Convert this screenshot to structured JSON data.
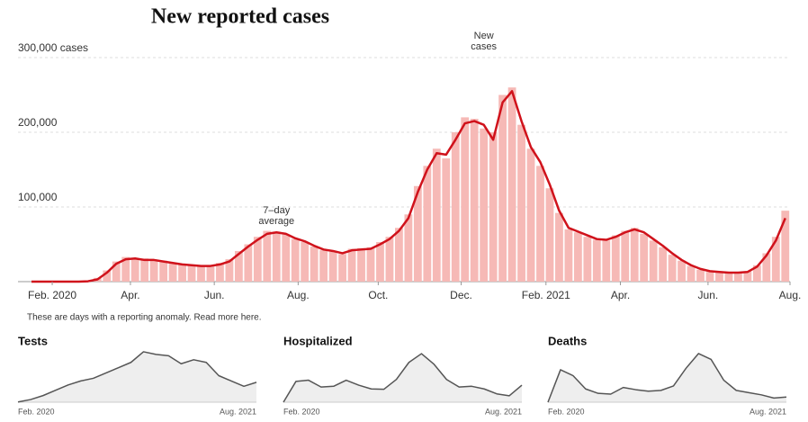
{
  "chart_data": [
    {
      "type": "bar_line",
      "title": "New reported cases",
      "annotations": [
        {
          "lines": [
            "7–day",
            "average"
          ],
          "x": 26,
          "y": 66000
        },
        {
          "lines": [
            "New",
            "cases"
          ],
          "x": 48,
          "y": 300000
        }
      ],
      "note": "These are days with a reporting anomaly. Read more here.",
      "x": [
        0,
        1,
        2,
        3,
        4,
        5,
        6,
        7,
        8,
        9,
        10,
        11,
        12,
        13,
        14,
        15,
        16,
        17,
        18,
        19,
        20,
        21,
        22,
        23,
        24,
        25,
        26,
        27,
        28,
        29,
        30,
        31,
        32,
        33,
        34,
        35,
        36,
        37,
        38,
        39,
        40,
        41,
        42,
        43,
        44,
        45,
        46,
        47,
        48,
        49,
        50,
        51,
        52,
        53,
        54,
        55,
        56,
        57,
        58,
        59,
        60,
        61,
        62,
        63,
        64,
        65,
        66,
        67,
        68,
        69,
        70,
        71,
        72,
        73,
        74,
        75,
        76,
        77,
        78,
        79,
        80
      ],
      "series": [
        {
          "type": "bar",
          "color": "#f6b9b6",
          "values": [
            0,
            0,
            0,
            0,
            0,
            0,
            800,
            5000,
            15000,
            27000,
            33000,
            30000,
            31000,
            28000,
            28000,
            25000,
            24000,
            22000,
            22000,
            22000,
            25000,
            30000,
            41000,
            50000,
            60000,
            68000,
            67000,
            63000,
            57000,
            53000,
            47000,
            42000,
            40000,
            37000,
            44000,
            45000,
            46000,
            53000,
            60000,
            72000,
            90000,
            128000,
            155000,
            178000,
            165000,
            200000,
            220000,
            218000,
            205000,
            200000,
            250000,
            260000,
            210000,
            178000,
            155000,
            125000,
            92000,
            70000,
            66000,
            60000,
            56000,
            55000,
            62000,
            68000,
            72000,
            64000,
            55000,
            46000,
            36000,
            28000,
            21000,
            16000,
            13000,
            13000,
            11000,
            12000,
            14000,
            22000,
            38000,
            60000,
            95000
          ]
        },
        {
          "type": "line",
          "color": "#d0121b",
          "values": [
            0,
            0,
            0,
            0,
            0,
            0,
            500,
            3000,
            12000,
            24000,
            30000,
            31000,
            29000,
            29000,
            27000,
            25000,
            23000,
            22000,
            21000,
            21000,
            23000,
            27000,
            37000,
            47000,
            56000,
            64000,
            66000,
            64000,
            58000,
            54000,
            48000,
            43000,
            41000,
            38000,
            42000,
            43000,
            44000,
            50000,
            57000,
            68000,
            85000,
            120000,
            150000,
            172000,
            170000,
            190000,
            212000,
            215000,
            210000,
            190000,
            240000,
            255000,
            215000,
            180000,
            160000,
            130000,
            95000,
            72000,
            67000,
            62000,
            57000,
            56000,
            60000,
            66000,
            70000,
            66000,
            57000,
            48000,
            38000,
            29000,
            22000,
            17000,
            14000,
            13000,
            12000,
            12000,
            13000,
            20000,
            35000,
            55000,
            85000
          ]
        }
      ],
      "xlim": [
        0,
        80.5
      ],
      "xticks": [
        {
          "value": 2.2,
          "label": "Feb. 2020"
        },
        {
          "value": 10.5,
          "label": "Apr."
        },
        {
          "value": 19.4,
          "label": "Jun."
        },
        {
          "value": 28.3,
          "label": "Aug."
        },
        {
          "value": 36.8,
          "label": "Oct."
        },
        {
          "value": 45.6,
          "label": "Dec."
        },
        {
          "value": 54.6,
          "label": "Feb. 2021"
        },
        {
          "value": 62.5,
          "label": "Apr."
        },
        {
          "value": 71.8,
          "label": "Jun."
        },
        {
          "value": 80.5,
          "label": "Aug."
        }
      ],
      "ylim": [
        0,
        300000
      ],
      "yticks": [
        {
          "value": 100000,
          "label": "100,000"
        },
        {
          "value": 200000,
          "label": "200,000"
        },
        {
          "value": 300000,
          "label": "300,000 cases"
        }
      ],
      "grid": true
    },
    {
      "type": "area",
      "title": "Tests",
      "x_labels": [
        "Feb. 2020",
        "Aug. 2021"
      ],
      "color": "#555555",
      "ylim": [
        0,
        2000000
      ],
      "values": [
        10000,
        100000,
        250000,
        450000,
        650000,
        800000,
        900000,
        1100000,
        1300000,
        1500000,
        1900000,
        1800000,
        1750000,
        1450000,
        1600000,
        1500000,
        1000000,
        800000,
        600000,
        750000
      ]
    },
    {
      "type": "area",
      "title": "Hospitalized",
      "x_labels": [
        "Feb. 2020",
        "Aug. 2021"
      ],
      "color": "#555555",
      "ylim": [
        0,
        140000
      ],
      "values": [
        0,
        55000,
        58000,
        40000,
        42000,
        58000,
        45000,
        35000,
        34000,
        60000,
        105000,
        128000,
        100000,
        60000,
        40000,
        42000,
        35000,
        22000,
        17000,
        45000
      ]
    },
    {
      "type": "area",
      "title": "Deaths",
      "x_labels": [
        "Feb. 2020",
        "Aug. 2021"
      ],
      "color": "#555555",
      "ylim": [
        0,
        3600
      ],
      "values": [
        0,
        2200,
        1800,
        900,
        600,
        550,
        1000,
        850,
        750,
        800,
        1100,
        2300,
        3300,
        2900,
        1500,
        800,
        650,
        500,
        280,
        350
      ]
    }
  ]
}
